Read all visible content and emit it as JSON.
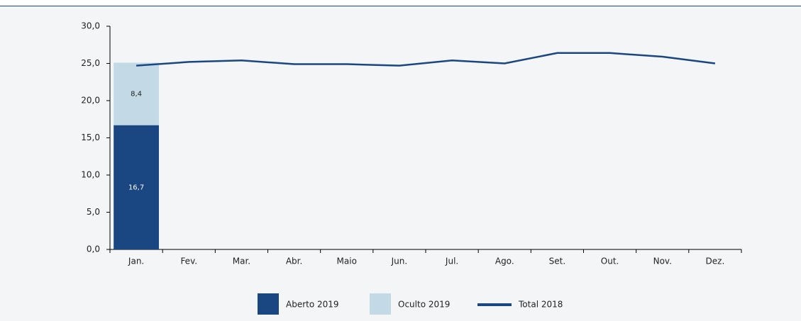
{
  "chart_data": {
    "type": "bar",
    "categories": [
      "Jan.",
      "Fev.",
      "Mar.",
      "Abr.",
      "Maio",
      "Jun.",
      "Jul.",
      "Ago.",
      "Set.",
      "Out.",
      "Nov.",
      "Dez."
    ],
    "series": [
      {
        "name": "Aberto 2019",
        "type": "bar",
        "color": "#1a4682",
        "values": [
          16.7,
          null,
          null,
          null,
          null,
          null,
          null,
          null,
          null,
          null,
          null,
          null
        ],
        "value_labels": [
          "16,7",
          null,
          null,
          null,
          null,
          null,
          null,
          null,
          null,
          null,
          null,
          null
        ]
      },
      {
        "name": "Oculto 2019",
        "type": "bar",
        "color": "#c3d9e6",
        "values": [
          8.4,
          null,
          null,
          null,
          null,
          null,
          null,
          null,
          null,
          null,
          null,
          null
        ],
        "value_labels": [
          "8,4",
          null,
          null,
          null,
          null,
          null,
          null,
          null,
          null,
          null,
          null,
          null
        ]
      },
      {
        "name": "Total 2018",
        "type": "line",
        "color": "#1a4682",
        "values": [
          24.7,
          25.2,
          25.4,
          24.9,
          24.9,
          24.7,
          25.4,
          25.0,
          26.4,
          26.4,
          25.9,
          25.0
        ]
      }
    ],
    "stacked": true,
    "ylim": [
      0,
      30
    ],
    "yticks": [
      {
        "value": 0,
        "label": "0,0"
      },
      {
        "value": 5,
        "label": "5,0"
      },
      {
        "value": 10,
        "label": "10,0"
      },
      {
        "value": 15,
        "label": "15,0"
      },
      {
        "value": 20,
        "label": "20,0"
      },
      {
        "value": 25,
        "label": "25,0"
      },
      {
        "value": 30,
        "label": "30,0"
      }
    ],
    "legend": "bottom"
  }
}
